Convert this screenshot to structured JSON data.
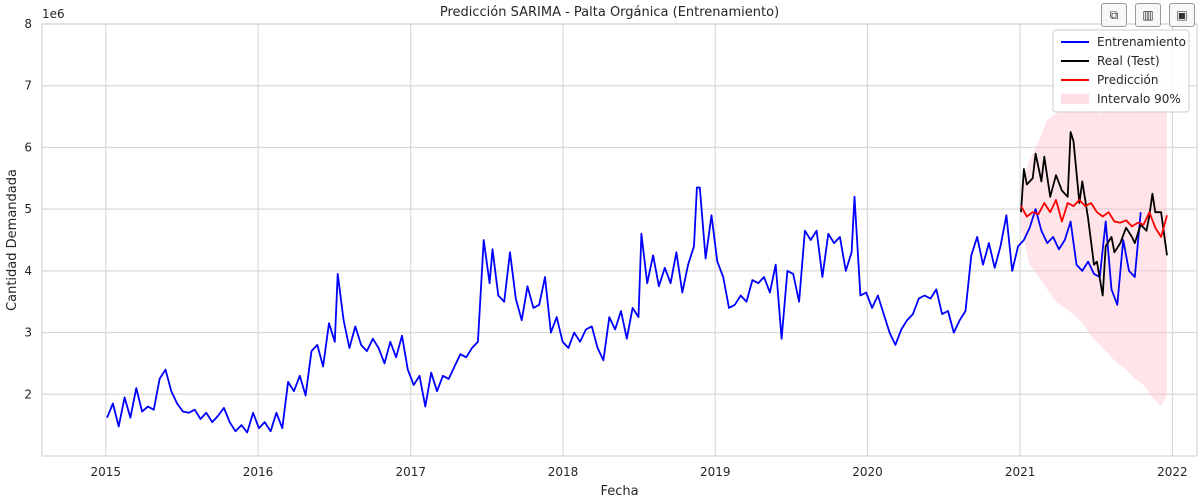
{
  "chart_data": {
    "type": "line",
    "title": "Predicción SARIMA - Palta Orgánica (Entrenamiento)",
    "xlabel": "Fecha",
    "ylabel": "Cantidad Demandada",
    "y_offset_label": "1e6",
    "x_range": [
      "2014-08-01",
      "2022-03-01"
    ],
    "ylim": [
      1.0,
      8.0
    ],
    "y_unit_scale": 1000000,
    "x_ticks": [
      "2015",
      "2016",
      "2017",
      "2018",
      "2019",
      "2020",
      "2021",
      "2022"
    ],
    "y_ticks": [
      "2",
      "3",
      "4",
      "5",
      "6",
      "7",
      "8"
    ],
    "grid": true,
    "legend_position": "upper right",
    "series": [
      {
        "name": "Entrenamiento",
        "color": "#0000ff",
        "points": [
          [
            "2015-01-04",
            1.62
          ],
          [
            "2015-01-18",
            1.85
          ],
          [
            "2015-02-01",
            1.48
          ],
          [
            "2015-02-15",
            1.95
          ],
          [
            "2015-03-01",
            1.62
          ],
          [
            "2015-03-15",
            2.1
          ],
          [
            "2015-03-29",
            1.72
          ],
          [
            "2015-04-12",
            1.8
          ],
          [
            "2015-04-26",
            1.75
          ],
          [
            "2015-05-10",
            2.25
          ],
          [
            "2015-05-24",
            2.4
          ],
          [
            "2015-06-07",
            2.05
          ],
          [
            "2015-06-21",
            1.85
          ],
          [
            "2015-07-05",
            1.72
          ],
          [
            "2015-07-19",
            1.7
          ],
          [
            "2015-08-02",
            1.75
          ],
          [
            "2015-08-16",
            1.6
          ],
          [
            "2015-08-30",
            1.7
          ],
          [
            "2015-09-13",
            1.55
          ],
          [
            "2015-09-27",
            1.65
          ],
          [
            "2015-10-11",
            1.78
          ],
          [
            "2015-10-25",
            1.55
          ],
          [
            "2015-11-08",
            1.4
          ],
          [
            "2015-11-22",
            1.5
          ],
          [
            "2015-12-06",
            1.38
          ],
          [
            "2015-12-20",
            1.7
          ],
          [
            "2016-01-03",
            1.45
          ],
          [
            "2016-01-17",
            1.55
          ],
          [
            "2016-01-31",
            1.4
          ],
          [
            "2016-02-14",
            1.7
          ],
          [
            "2016-02-28",
            1.45
          ],
          [
            "2016-03-13",
            2.2
          ],
          [
            "2016-03-27",
            2.05
          ],
          [
            "2016-04-10",
            2.3
          ],
          [
            "2016-04-24",
            1.98
          ],
          [
            "2016-05-08",
            2.7
          ],
          [
            "2016-05-22",
            2.8
          ],
          [
            "2016-06-05",
            2.45
          ],
          [
            "2016-06-19",
            3.15
          ],
          [
            "2016-07-03",
            2.85
          ],
          [
            "2016-07-10",
            3.95
          ],
          [
            "2016-07-24",
            3.2
          ],
          [
            "2016-08-07",
            2.75
          ],
          [
            "2016-08-21",
            3.1
          ],
          [
            "2016-09-04",
            2.8
          ],
          [
            "2016-09-18",
            2.7
          ],
          [
            "2016-10-02",
            2.9
          ],
          [
            "2016-10-16",
            2.75
          ],
          [
            "2016-10-30",
            2.5
          ],
          [
            "2016-11-13",
            2.85
          ],
          [
            "2016-11-27",
            2.6
          ],
          [
            "2016-12-11",
            2.95
          ],
          [
            "2016-12-25",
            2.4
          ],
          [
            "2017-01-08",
            2.15
          ],
          [
            "2017-01-22",
            2.3
          ],
          [
            "2017-02-05",
            1.8
          ],
          [
            "2017-02-19",
            2.35
          ],
          [
            "2017-03-05",
            2.05
          ],
          [
            "2017-03-19",
            2.3
          ],
          [
            "2017-04-02",
            2.25
          ],
          [
            "2017-04-16",
            2.45
          ],
          [
            "2017-04-30",
            2.65
          ],
          [
            "2017-05-14",
            2.6
          ],
          [
            "2017-05-28",
            2.75
          ],
          [
            "2017-06-11",
            2.85
          ],
          [
            "2017-06-25",
            4.5
          ],
          [
            "2017-07-09",
            3.8
          ],
          [
            "2017-07-16",
            4.35
          ],
          [
            "2017-07-30",
            3.6
          ],
          [
            "2017-08-13",
            3.5
          ],
          [
            "2017-08-27",
            4.3
          ],
          [
            "2017-09-10",
            3.55
          ],
          [
            "2017-09-24",
            3.2
          ],
          [
            "2017-10-08",
            3.75
          ],
          [
            "2017-10-22",
            3.4
          ],
          [
            "2017-11-05",
            3.45
          ],
          [
            "2017-11-19",
            3.9
          ],
          [
            "2017-12-03",
            3.0
          ],
          [
            "2017-12-17",
            3.25
          ],
          [
            "2017-12-31",
            2.85
          ],
          [
            "2018-01-14",
            2.75
          ],
          [
            "2018-01-28",
            3.0
          ],
          [
            "2018-02-11",
            2.85
          ],
          [
            "2018-02-25",
            3.05
          ],
          [
            "2018-03-11",
            3.1
          ],
          [
            "2018-03-25",
            2.75
          ],
          [
            "2018-04-08",
            2.55
          ],
          [
            "2018-04-22",
            3.25
          ],
          [
            "2018-05-06",
            3.05
          ],
          [
            "2018-05-20",
            3.35
          ],
          [
            "2018-06-03",
            2.9
          ],
          [
            "2018-06-17",
            3.4
          ],
          [
            "2018-07-01",
            3.25
          ],
          [
            "2018-07-08",
            4.6
          ],
          [
            "2018-07-22",
            3.8
          ],
          [
            "2018-08-05",
            4.25
          ],
          [
            "2018-08-19",
            3.75
          ],
          [
            "2018-09-02",
            4.05
          ],
          [
            "2018-09-16",
            3.8
          ],
          [
            "2018-09-30",
            4.3
          ],
          [
            "2018-10-14",
            3.65
          ],
          [
            "2018-10-28",
            4.1
          ],
          [
            "2018-11-11",
            4.4
          ],
          [
            "2018-11-18",
            5.35
          ],
          [
            "2018-11-25",
            5.35
          ],
          [
            "2018-12-09",
            4.2
          ],
          [
            "2018-12-23",
            4.9
          ],
          [
            "2019-01-06",
            4.15
          ],
          [
            "2019-01-20",
            3.9
          ],
          [
            "2019-02-03",
            3.4
          ],
          [
            "2019-02-17",
            3.45
          ],
          [
            "2019-03-03",
            3.6
          ],
          [
            "2019-03-17",
            3.5
          ],
          [
            "2019-03-31",
            3.85
          ],
          [
            "2019-04-14",
            3.8
          ],
          [
            "2019-04-28",
            3.9
          ],
          [
            "2019-05-12",
            3.65
          ],
          [
            "2019-05-26",
            4.1
          ],
          [
            "2019-06-09",
            2.9
          ],
          [
            "2019-06-23",
            4.0
          ],
          [
            "2019-07-07",
            3.95
          ],
          [
            "2019-07-21",
            3.5
          ],
          [
            "2019-08-04",
            4.65
          ],
          [
            "2019-08-18",
            4.5
          ],
          [
            "2019-09-01",
            4.65
          ],
          [
            "2019-09-15",
            3.9
          ],
          [
            "2019-09-29",
            4.6
          ],
          [
            "2019-10-13",
            4.45
          ],
          [
            "2019-10-27",
            4.55
          ],
          [
            "2019-11-10",
            4.0
          ],
          [
            "2019-11-24",
            4.3
          ],
          [
            "2019-12-01",
            5.2
          ],
          [
            "2019-12-15",
            3.6
          ],
          [
            "2019-12-29",
            3.65
          ],
          [
            "2020-01-12",
            3.4
          ],
          [
            "2020-01-26",
            3.6
          ],
          [
            "2020-02-09",
            3.3
          ],
          [
            "2020-02-23",
            3.0
          ],
          [
            "2020-03-08",
            2.8
          ],
          [
            "2020-03-22",
            3.05
          ],
          [
            "2020-04-05",
            3.2
          ],
          [
            "2020-04-19",
            3.3
          ],
          [
            "2020-05-03",
            3.55
          ],
          [
            "2020-05-17",
            3.6
          ],
          [
            "2020-05-31",
            3.55
          ],
          [
            "2020-06-14",
            3.7
          ],
          [
            "2020-06-28",
            3.3
          ],
          [
            "2020-07-12",
            3.35
          ],
          [
            "2020-07-26",
            3.0
          ],
          [
            "2020-08-09",
            3.2
          ],
          [
            "2020-08-23",
            3.35
          ],
          [
            "2020-09-06",
            4.25
          ],
          [
            "2020-09-20",
            4.55
          ],
          [
            "2020-10-04",
            4.1
          ],
          [
            "2020-10-18",
            4.45
          ],
          [
            "2020-11-01",
            4.05
          ],
          [
            "2020-11-15",
            4.4
          ],
          [
            "2020-11-29",
            4.9
          ],
          [
            "2020-12-13",
            4.0
          ],
          [
            "2020-12-27",
            4.4
          ],
          [
            "2021-01-10",
            4.5
          ],
          [
            "2021-01-24",
            4.7
          ],
          [
            "2021-02-07",
            5.0
          ],
          [
            "2021-02-21",
            4.65
          ],
          [
            "2021-03-07",
            4.45
          ],
          [
            "2021-03-21",
            4.55
          ],
          [
            "2021-04-04",
            4.35
          ],
          [
            "2021-04-18",
            4.5
          ],
          [
            "2021-05-02",
            4.8
          ],
          [
            "2021-05-16",
            4.1
          ],
          [
            "2021-05-30",
            4.0
          ],
          [
            "2021-06-13",
            4.15
          ],
          [
            "2021-06-27",
            3.95
          ],
          [
            "2021-07-11",
            3.9
          ],
          [
            "2021-07-25",
            4.8
          ],
          [
            "2021-08-08",
            3.7
          ],
          [
            "2021-08-22",
            3.45
          ],
          [
            "2021-09-05",
            4.5
          ],
          [
            "2021-09-19",
            4.0
          ],
          [
            "2021-10-03",
            3.9
          ],
          [
            "2021-10-17",
            4.95
          ]
        ]
      },
      {
        "name": "Real (Test)",
        "color": "#000000",
        "points": [
          [
            "2021-01-03",
            4.95
          ],
          [
            "2021-01-10",
            5.65
          ],
          [
            "2021-01-17",
            5.4
          ],
          [
            "2021-01-31",
            5.5
          ],
          [
            "2021-02-07",
            5.9
          ],
          [
            "2021-02-21",
            5.45
          ],
          [
            "2021-02-28",
            5.85
          ],
          [
            "2021-03-14",
            5.2
          ],
          [
            "2021-03-28",
            5.55
          ],
          [
            "2021-04-11",
            5.3
          ],
          [
            "2021-04-25",
            5.2
          ],
          [
            "2021-05-02",
            6.25
          ],
          [
            "2021-05-09",
            6.1
          ],
          [
            "2021-05-23",
            5.1
          ],
          [
            "2021-05-30",
            5.45
          ],
          [
            "2021-06-13",
            4.85
          ],
          [
            "2021-06-27",
            4.1
          ],
          [
            "2021-07-04",
            4.15
          ],
          [
            "2021-07-18",
            3.6
          ],
          [
            "2021-07-25",
            4.4
          ],
          [
            "2021-08-08",
            4.55
          ],
          [
            "2021-08-15",
            4.3
          ],
          [
            "2021-08-29",
            4.45
          ],
          [
            "2021-09-12",
            4.7
          ],
          [
            "2021-09-26",
            4.55
          ],
          [
            "2021-10-03",
            4.45
          ],
          [
            "2021-10-17",
            4.75
          ],
          [
            "2021-10-31",
            4.65
          ],
          [
            "2021-11-07",
            4.9
          ],
          [
            "2021-11-14",
            5.25
          ],
          [
            "2021-11-21",
            4.95
          ],
          [
            "2021-12-05",
            4.95
          ],
          [
            "2021-12-19",
            4.25
          ]
        ]
      },
      {
        "name": "Predicción",
        "color": "#ff0000",
        "points": [
          [
            "2021-01-03",
            5.05
          ],
          [
            "2021-01-17",
            4.88
          ],
          [
            "2021-01-31",
            4.95
          ],
          [
            "2021-02-14",
            4.92
          ],
          [
            "2021-02-28",
            5.1
          ],
          [
            "2021-03-14",
            4.95
          ],
          [
            "2021-03-28",
            5.15
          ],
          [
            "2021-04-11",
            4.8
          ],
          [
            "2021-04-25",
            5.1
          ],
          [
            "2021-05-09",
            5.05
          ],
          [
            "2021-05-23",
            5.15
          ],
          [
            "2021-06-06",
            5.05
          ],
          [
            "2021-06-20",
            5.1
          ],
          [
            "2021-07-04",
            4.95
          ],
          [
            "2021-07-18",
            4.88
          ],
          [
            "2021-08-01",
            4.95
          ],
          [
            "2021-08-15",
            4.8
          ],
          [
            "2021-08-29",
            4.78
          ],
          [
            "2021-09-12",
            4.82
          ],
          [
            "2021-09-26",
            4.72
          ],
          [
            "2021-10-10",
            4.78
          ],
          [
            "2021-10-24",
            4.75
          ],
          [
            "2021-11-07",
            4.95
          ],
          [
            "2021-11-21",
            4.7
          ],
          [
            "2021-12-05",
            4.55
          ],
          [
            "2021-12-19",
            4.9
          ]
        ]
      }
    ],
    "interval": {
      "name": "Intervalo 90%",
      "color": "#ffc0cb",
      "upper": [
        [
          "2021-01-03",
          5.4
        ],
        [
          "2021-01-24",
          5.8
        ],
        [
          "2021-02-14",
          6.1
        ],
        [
          "2021-03-07",
          6.45
        ],
        [
          "2021-03-28",
          6.55
        ],
        [
          "2021-04-18",
          6.6
        ],
        [
          "2021-05-09",
          6.65
        ],
        [
          "2021-05-30",
          6.65
        ],
        [
          "2021-06-20",
          6.6
        ],
        [
          "2021-07-11",
          6.55
        ],
        [
          "2021-08-01",
          6.6
        ],
        [
          "2021-08-22",
          6.65
        ],
        [
          "2021-09-12",
          6.62
        ],
        [
          "2021-10-03",
          6.63
        ],
        [
          "2021-10-24",
          6.6
        ],
        [
          "2021-11-14",
          6.62
        ],
        [
          "2021-12-05",
          6.6
        ],
        [
          "2021-12-19",
          6.6
        ]
      ],
      "lower": [
        [
          "2021-01-03",
          4.7
        ],
        [
          "2021-01-24",
          4.1
        ],
        [
          "2021-02-14",
          3.9
        ],
        [
          "2021-03-07",
          3.7
        ],
        [
          "2021-03-28",
          3.5
        ],
        [
          "2021-04-18",
          3.4
        ],
        [
          "2021-05-09",
          3.3
        ],
        [
          "2021-05-30",
          3.15
        ],
        [
          "2021-06-20",
          2.95
        ],
        [
          "2021-07-11",
          2.8
        ],
        [
          "2021-08-01",
          2.65
        ],
        [
          "2021-08-22",
          2.5
        ],
        [
          "2021-09-12",
          2.4
        ],
        [
          "2021-10-03",
          2.25
        ],
        [
          "2021-10-24",
          2.15
        ],
        [
          "2021-11-14",
          1.95
        ],
        [
          "2021-12-05",
          1.8
        ],
        [
          "2021-12-19",
          2.0
        ]
      ]
    }
  },
  "toolbar": {
    "items": [
      {
        "name": "copy-icon",
        "glyph": "⧉"
      },
      {
        "name": "chart-icon",
        "glyph": "▥"
      },
      {
        "name": "save-icon",
        "glyph": "▣"
      }
    ]
  }
}
